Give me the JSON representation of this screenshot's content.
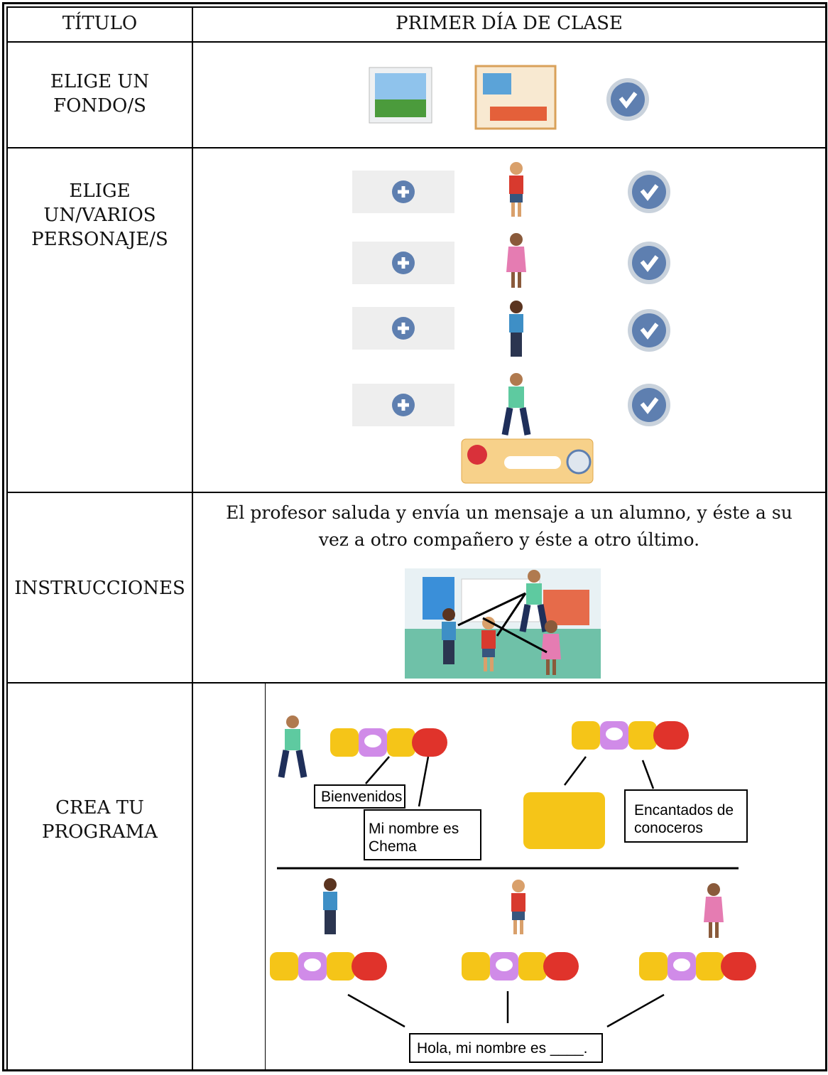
{
  "table": {
    "header": [
      "TÍTULO",
      "PRIMER DÍA DE CLASE"
    ],
    "rows": [
      {
        "label": [
          "ELIGE UN",
          "FONDO/S"
        ]
      },
      {
        "label": [
          "ELIGE",
          "UN/VARIOS",
          "PERSONAJE/S"
        ]
      },
      {
        "label": [
          "INSTRUCCIONES"
        ],
        "text": [
          "El profesor saluda y envía un mensaje a un alumno, y éste a su",
          "vez a otro compañero y éste a otro último."
        ]
      },
      {
        "label": [
          "CREA TU",
          "PROGRAMA"
        ],
        "callouts": [
          [
            "Bienvenidos"
          ],
          [
            "Mi nombre es",
            "Chema"
          ],
          [
            "Encantados de",
            "conoceros"
          ],
          [
            "Hola, mi nombre es ____."
          ]
        ]
      }
    ]
  }
}
